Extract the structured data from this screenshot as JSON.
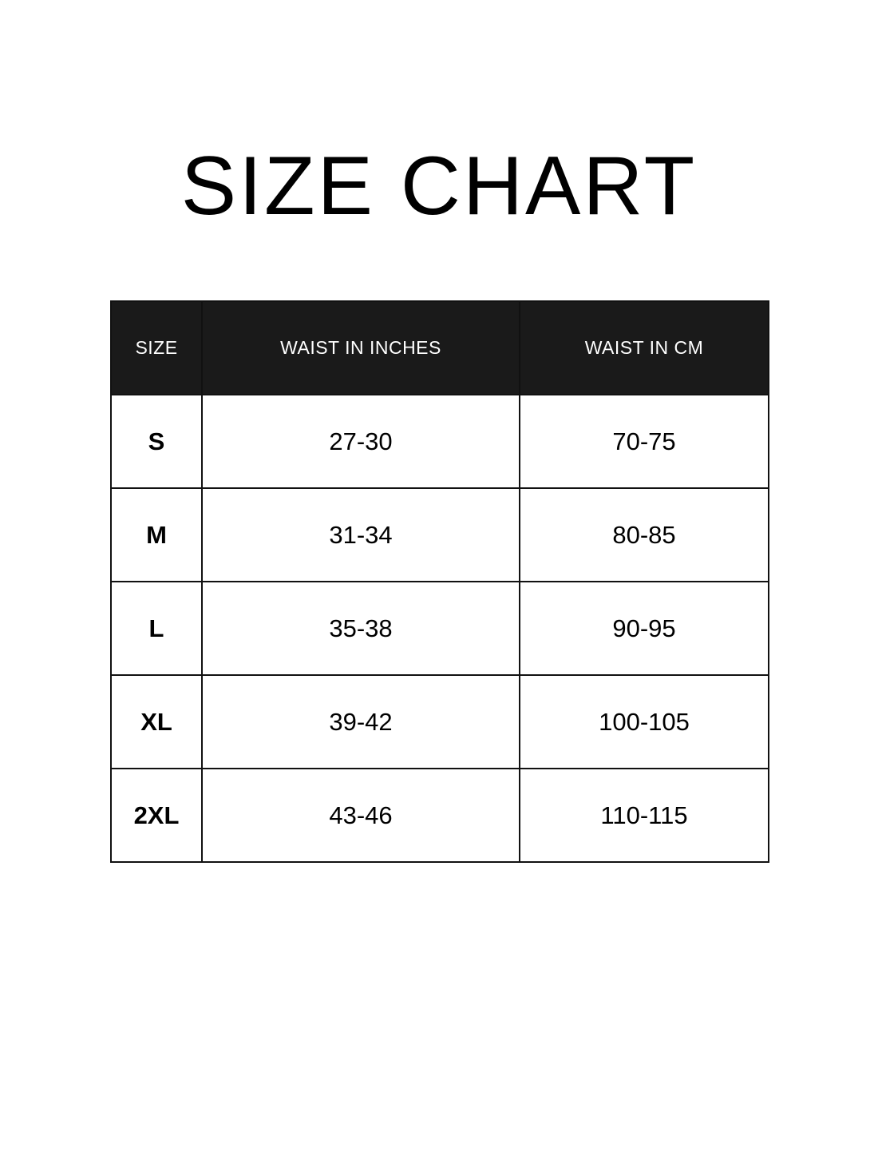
{
  "title": "SIZE CHART",
  "colors": {
    "header_bg": "#1a1a1a",
    "header_text": "#ffffff",
    "border": "#111111"
  },
  "table": {
    "headers": [
      "SIZE",
      "WAIST IN INCHES",
      "WAIST IN CM"
    ],
    "rows": [
      [
        "S",
        "27-30",
        "70-75"
      ],
      [
        "M",
        "31-34",
        "80-85"
      ],
      [
        "L",
        "35-38",
        "90-95"
      ],
      [
        "XL",
        "39-42",
        "100-105"
      ],
      [
        "2XL",
        "43-46",
        "110-115"
      ]
    ]
  }
}
